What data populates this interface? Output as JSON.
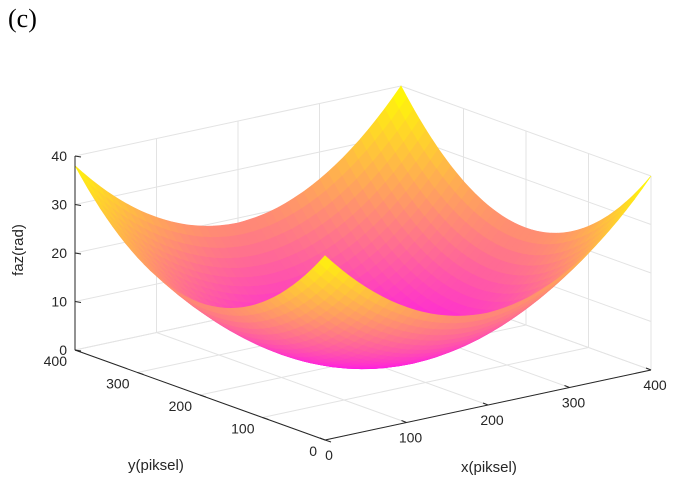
{
  "panel_label": "(c)",
  "chart_data": {
    "type": "surface",
    "title": "",
    "xlabel": "x(piksel)",
    "ylabel": "y(piksel)",
    "zlabel": "faz(rad)",
    "xlim": [
      0,
      400
    ],
    "ylim": [
      0,
      400
    ],
    "zlim": [
      0,
      40
    ],
    "xticks": [
      "0",
      "100",
      "200",
      "300",
      "400"
    ],
    "yticks": [
      "0",
      "100",
      "200",
      "300",
      "400"
    ],
    "zticks": [
      "0",
      "10",
      "20",
      "30",
      "40"
    ],
    "surface": {
      "function": "paraboloid",
      "center": [
        200,
        200
      ],
      "min_z": 0,
      "corner_z": {
        "x0_y0": 38,
        "x400_y0": 40,
        "x0_y400": 38,
        "x400_y400": 40
      }
    },
    "grid": true,
    "colormap": [
      "#ff00ff",
      "#ffff00"
    ]
  }
}
